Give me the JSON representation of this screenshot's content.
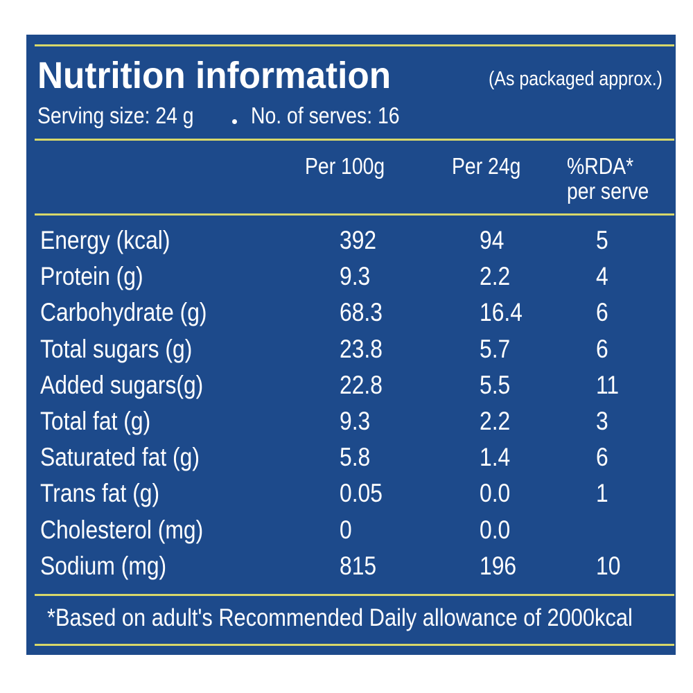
{
  "header": {
    "title": "Nutrition information",
    "note": "(As packaged approx.)",
    "serving": "Serving size: 24 g",
    "serves": "No. of serves: 16"
  },
  "table": {
    "columns": [
      "Per 100g",
      "Per 24g",
      "%RDA* per serve"
    ],
    "rows": [
      [
        "Energy (kcal)",
        "392",
        "94",
        "5"
      ],
      [
        "Protein (g)",
        "9.3",
        "2.2",
        "4"
      ],
      [
        "Carbohydrate (g)",
        "68.3",
        "16.4",
        "6"
      ],
      [
        "Total sugars (g)",
        "23.8",
        "5.7",
        "6"
      ],
      [
        "Added sugars(g)",
        "22.8",
        "5.5",
        "11"
      ],
      [
        "Total fat (g)",
        "9.3",
        "2.2",
        "3"
      ],
      [
        "Saturated fat (g)",
        "5.8",
        "1.4",
        "6"
      ],
      [
        "Trans fat (g)",
        "0.05",
        "0.0",
        "1"
      ],
      [
        "Cholesterol (mg)",
        "0",
        "0.0"
      ],
      [
        "Sodium (mg)",
        "815",
        "196",
        "10"
      ]
    ]
  },
  "footnote": "*Based on adult's Recommended Daily allowance of 2000kcal"
}
